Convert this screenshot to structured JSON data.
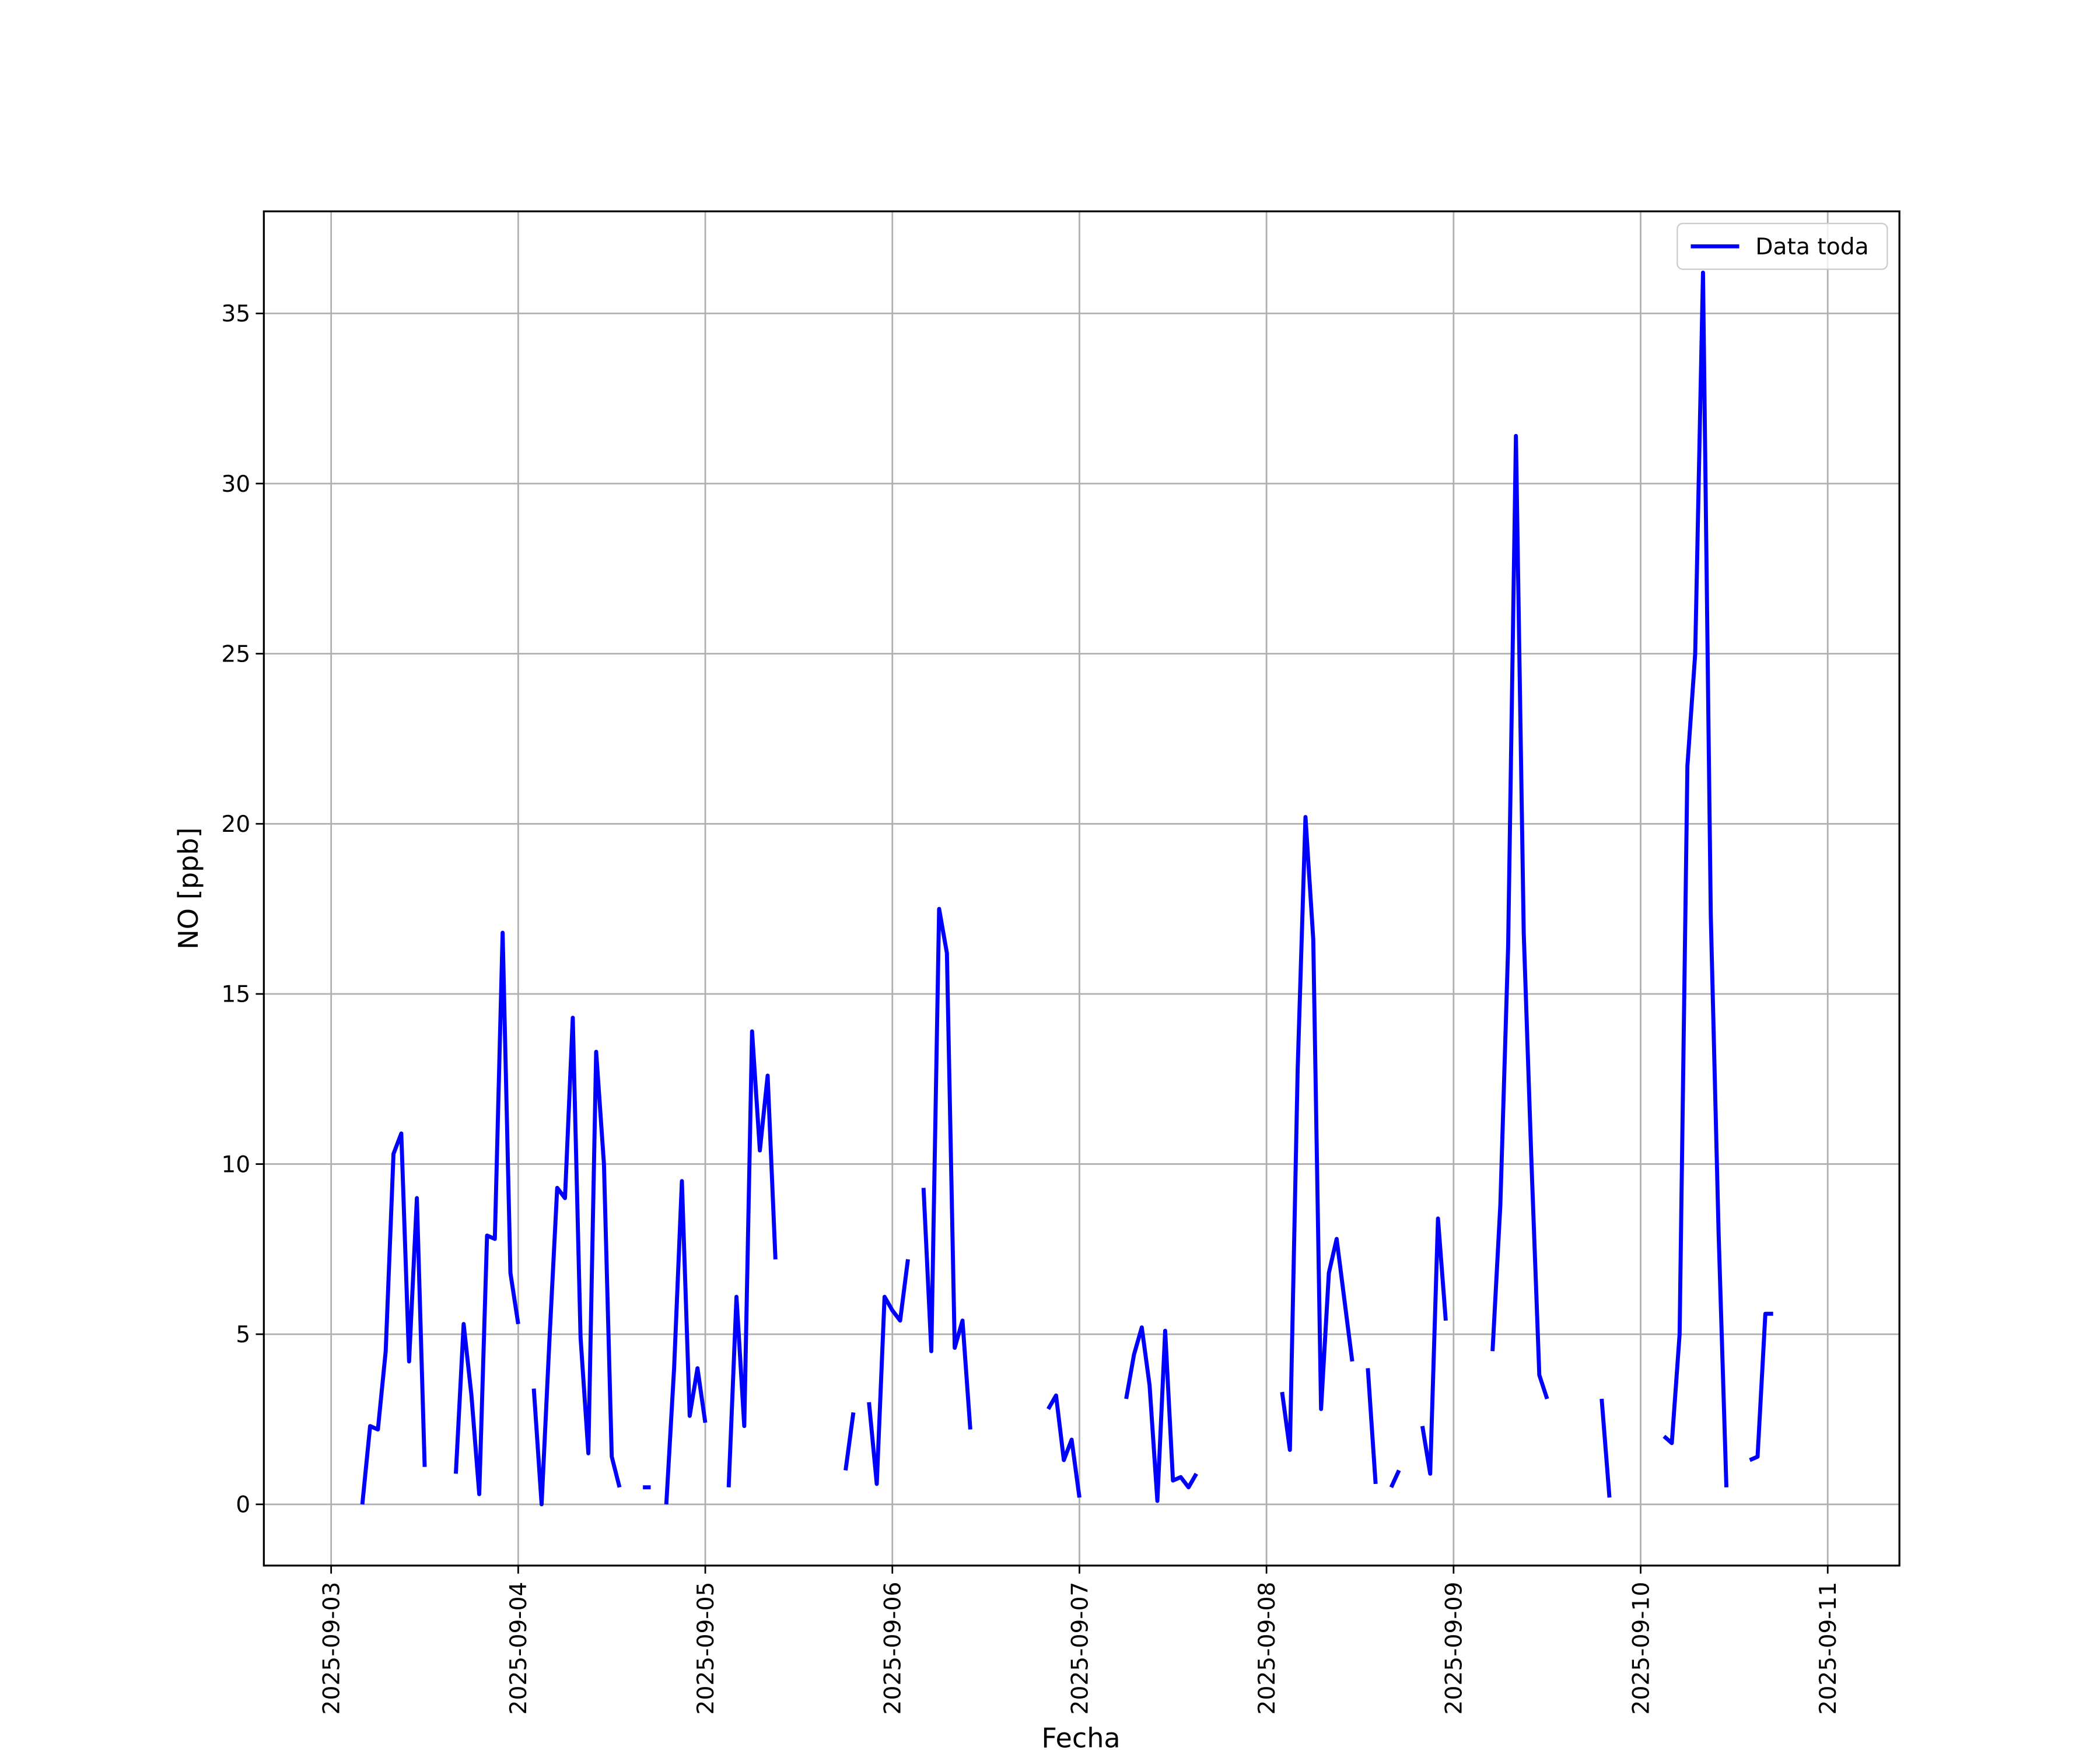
{
  "chart_data": {
    "type": "line",
    "xlabel": "Fecha",
    "ylabel": "NO [ppb]",
    "x": [
      "2025-09-03 04:00",
      "2025-09-03 05:00",
      "2025-09-03 06:00",
      "2025-09-03 07:00",
      "2025-09-03 08:00",
      "2025-09-03 09:00",
      "2025-09-03 10:00",
      "2025-09-03 11:00",
      "2025-09-03 12:00",
      "2025-09-03 13:00",
      "2025-09-03 16:00",
      "2025-09-03 17:00",
      "2025-09-03 18:00",
      "2025-09-03 19:00",
      "2025-09-03 20:00",
      "2025-09-03 21:00",
      "2025-09-03 22:00",
      "2025-09-03 23:00",
      "2025-09-04 00:00",
      "2025-09-04 01:00",
      "2025-09-04 02:00",
      "2025-09-04 03:00",
      "2025-09-04 04:00",
      "2025-09-04 05:00",
      "2025-09-04 06:00",
      "2025-09-04 07:00",
      "2025-09-04 08:00",
      "2025-09-04 09:00",
      "2025-09-04 10:00",
      "2025-09-04 11:00",
      "2025-09-04 12:00",
      "2025-09-04 13:00",
      "2025-09-04 14:00",
      "2025-09-04 16:00",
      "2025-09-04 17:00",
      "2025-09-04 18:00",
      "2025-09-04 19:00",
      "2025-09-04 20:00",
      "2025-09-04 21:00",
      "2025-09-04 22:00",
      "2025-09-04 23:00",
      "2025-09-05 00:00",
      "2025-09-05 01:00",
      "2025-09-05 03:00",
      "2025-09-05 04:00",
      "2025-09-05 05:00",
      "2025-09-05 06:00",
      "2025-09-05 07:00",
      "2025-09-05 08:00",
      "2025-09-05 09:00",
      "2025-09-05 10:00",
      "2025-09-05 18:00",
      "2025-09-05 19:00",
      "2025-09-05 20:00",
      "2025-09-05 21:00",
      "2025-09-05 22:00",
      "2025-09-05 23:00",
      "2025-09-06 00:00",
      "2025-09-06 01:00",
      "2025-09-06 02:00",
      "2025-09-06 03:00",
      "2025-09-06 04:00",
      "2025-09-06 05:00",
      "2025-09-06 06:00",
      "2025-09-06 07:00",
      "2025-09-06 08:00",
      "2025-09-06 09:00",
      "2025-09-06 10:00",
      "2025-09-06 11:00",
      "2025-09-06 20:00",
      "2025-09-06 21:00",
      "2025-09-06 22:00",
      "2025-09-06 23:00",
      "2025-09-07 00:00",
      "2025-09-07 01:00",
      "2025-09-07 06:00",
      "2025-09-07 07:00",
      "2025-09-07 08:00",
      "2025-09-07 09:00",
      "2025-09-07 10:00",
      "2025-09-07 11:00",
      "2025-09-07 12:00",
      "2025-09-07 13:00",
      "2025-09-07 14:00",
      "2025-09-07 15:00",
      "2025-09-07 16:00",
      "2025-09-08 02:00",
      "2025-09-08 03:00",
      "2025-09-08 04:00",
      "2025-09-08 05:00",
      "2025-09-08 06:00",
      "2025-09-08 07:00",
      "2025-09-08 08:00",
      "2025-09-08 09:00",
      "2025-09-08 10:00",
      "2025-09-08 11:00",
      "2025-09-08 12:00",
      "2025-09-08 13:00",
      "2025-09-08 14:00",
      "2025-09-08 15:00",
      "2025-09-08 16:00",
      "2025-09-08 17:00",
      "2025-09-08 18:00",
      "2025-09-08 20:00",
      "2025-09-08 21:00",
      "2025-09-08 22:00",
      "2025-09-08 23:00",
      "2025-09-09 00:00",
      "2025-09-09 05:00",
      "2025-09-09 06:00",
      "2025-09-09 07:00",
      "2025-09-09 08:00",
      "2025-09-09 09:00",
      "2025-09-09 10:00",
      "2025-09-09 11:00",
      "2025-09-09 12:00",
      "2025-09-09 13:00",
      "2025-09-09 19:00",
      "2025-09-09 20:00",
      "2025-09-09 21:00",
      "2025-09-10 03:00",
      "2025-09-10 04:00",
      "2025-09-10 05:00",
      "2025-09-10 06:00",
      "2025-09-10 07:00",
      "2025-09-10 08:00",
      "2025-09-10 09:00",
      "2025-09-10 10:00",
      "2025-09-10 11:00",
      "2025-09-10 12:00",
      "2025-09-10 14:00",
      "2025-09-10 15:00",
      "2025-09-10 16:00",
      "2025-09-10 17:00"
    ],
    "series": [
      {
        "name": "Data toda",
        "color": "#0000ff",
        "values": [
          0,
          2.3,
          2.2,
          4.5,
          10.3,
          10.9,
          4.2,
          9.0,
          1.1,
          null,
          0.9,
          5.3,
          3.2,
          0.3,
          7.9,
          7.8,
          16.8,
          6.8,
          5.3,
          null,
          3.4,
          0,
          4.8,
          9.3,
          9.0,
          14.3,
          4.9,
          1.5,
          13.3,
          10.0,
          1.4,
          0.5,
          null,
          0.5,
          0.5,
          null,
          0,
          4.0,
          9.5,
          2.6,
          4.0,
          2.4,
          null,
          0.5,
          6.1,
          2.3,
          13.9,
          10.4,
          12.6,
          7.2,
          null,
          1.0,
          2.7,
          null,
          3.0,
          0.6,
          6.1,
          5.7,
          5.4,
          7.2,
          null,
          9.3,
          4.5,
          17.5,
          16.2,
          4.6,
          5.4,
          2.2,
          null,
          2.8,
          3.2,
          1.3,
          1.9,
          0.2,
          null,
          3.1,
          4.4,
          5.2,
          3.5,
          0.1,
          5.1,
          0.7,
          0.8,
          0.5,
          0.9,
          null,
          3.3,
          1.6,
          12.8,
          20.2,
          16.6,
          2.8,
          6.8,
          7.8,
          6.0,
          4.2,
          null,
          4.0,
          0.6,
          null,
          0.5,
          1.0,
          null,
          2.3,
          0.9,
          8.4,
          5.4,
          null,
          4.5,
          8.8,
          16.4,
          31.4,
          16.8,
          10.0,
          3.8,
          3.1,
          null,
          3.1,
          0.2,
          null,
          2.0,
          1.8,
          5.0,
          21.7,
          25.0,
          36.2,
          17.3,
          8.0,
          0.5,
          null,
          1.3,
          1.4,
          5.6,
          5.6
        ]
      }
    ],
    "xlim": [
      "2025-09-02 15:22",
      "2025-09-11 09:12"
    ],
    "xticks": [
      "2025-09-03",
      "2025-09-04",
      "2025-09-05",
      "2025-09-06",
      "2025-09-07",
      "2025-09-08",
      "2025-09-09",
      "2025-09-10",
      "2025-09-11"
    ],
    "ylim": [
      -1.8,
      38.0
    ],
    "yticks": [
      0,
      5,
      10,
      15,
      20,
      25,
      30,
      35
    ],
    "grid": true,
    "legend": "upper right"
  }
}
